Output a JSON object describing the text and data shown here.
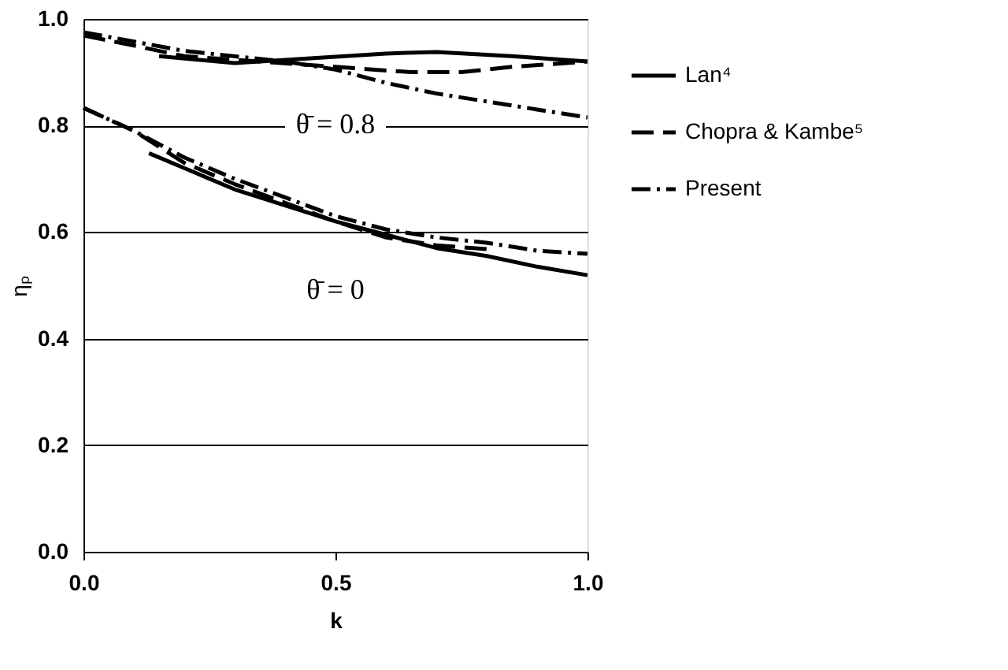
{
  "chart_data": {
    "type": "line",
    "xlabel": "k",
    "ylabel": "ηₚ",
    "xlim": [
      0,
      1
    ],
    "ylim": [
      0,
      1
    ],
    "xticks": [
      {
        "value": 0,
        "label": "0.0"
      },
      0.5,
      {
        "value": 1,
        "label": "1.0"
      }
    ],
    "yticks": [
      {
        "value": 0,
        "label": "0.0"
      },
      0.2,
      0.4,
      0.6,
      0.8,
      {
        "value": 1,
        "label": "1.0"
      }
    ],
    "grid": "y",
    "legend": "right",
    "marker": "none",
    "series": [
      {
        "name": "Lan⁴",
        "color": "#000000",
        "line_style": "solid",
        "x": [
          0.13,
          0.2,
          0.3,
          0.4,
          0.5,
          0.6,
          0.7,
          0.8,
          0.9,
          1.0
        ],
        "values": [
          0.748,
          0.72,
          0.68,
          0.65,
          0.62,
          0.595,
          0.57,
          0.555,
          0.535,
          0.519
        ]
      },
      {
        "name": "Chopra & Kambe⁵",
        "color": "#000000",
        "line_style": "dashed",
        "x": [
          0.0,
          0.1,
          0.2,
          0.3,
          0.4,
          0.5,
          0.6,
          0.7,
          0.8
        ],
        "values": [
          0.833,
          0.79,
          0.73,
          0.69,
          0.655,
          0.62,
          0.59,
          0.575,
          0.568
        ]
      },
      {
        "name": "Present",
        "color": "#000000",
        "line_style": "dashdot",
        "x": [
          0.0,
          0.1,
          0.2,
          0.3,
          0.4,
          0.5,
          0.6,
          0.7,
          0.8,
          0.9,
          1.0
        ],
        "values": [
          0.833,
          0.79,
          0.74,
          0.7,
          0.665,
          0.63,
          0.605,
          0.59,
          0.58,
          0.565,
          0.559
        ]
      },
      {
        "color": "#000000",
        "line_style": "solid",
        "x": [
          0.15,
          0.3,
          0.45,
          0.6,
          0.7,
          0.85,
          1.0
        ],
        "values": [
          0.93,
          0.917,
          0.926,
          0.935,
          0.938,
          0.93,
          0.92
        ]
      },
      {
        "color": "#000000",
        "line_style": "dashed",
        "x": [
          0.0,
          0.1,
          0.2,
          0.35,
          0.5,
          0.65,
          0.75,
          0.85,
          1.0
        ],
        "values": [
          0.969,
          0.95,
          0.93,
          0.92,
          0.91,
          0.9,
          0.9,
          0.91,
          0.92
        ]
      },
      {
        "color": "#000000",
        "line_style": "dashdot",
        "x": [
          0.0,
          0.2,
          0.4,
          0.5,
          0.6,
          0.7,
          0.8,
          0.9,
          1.0
        ],
        "values": [
          0.975,
          0.94,
          0.92,
          0.905,
          0.88,
          0.86,
          0.845,
          0.83,
          0.815
        ]
      }
    ],
    "annotations": [
      "θ̄ = 0.8",
      "θ̄ = 0"
    ]
  }
}
